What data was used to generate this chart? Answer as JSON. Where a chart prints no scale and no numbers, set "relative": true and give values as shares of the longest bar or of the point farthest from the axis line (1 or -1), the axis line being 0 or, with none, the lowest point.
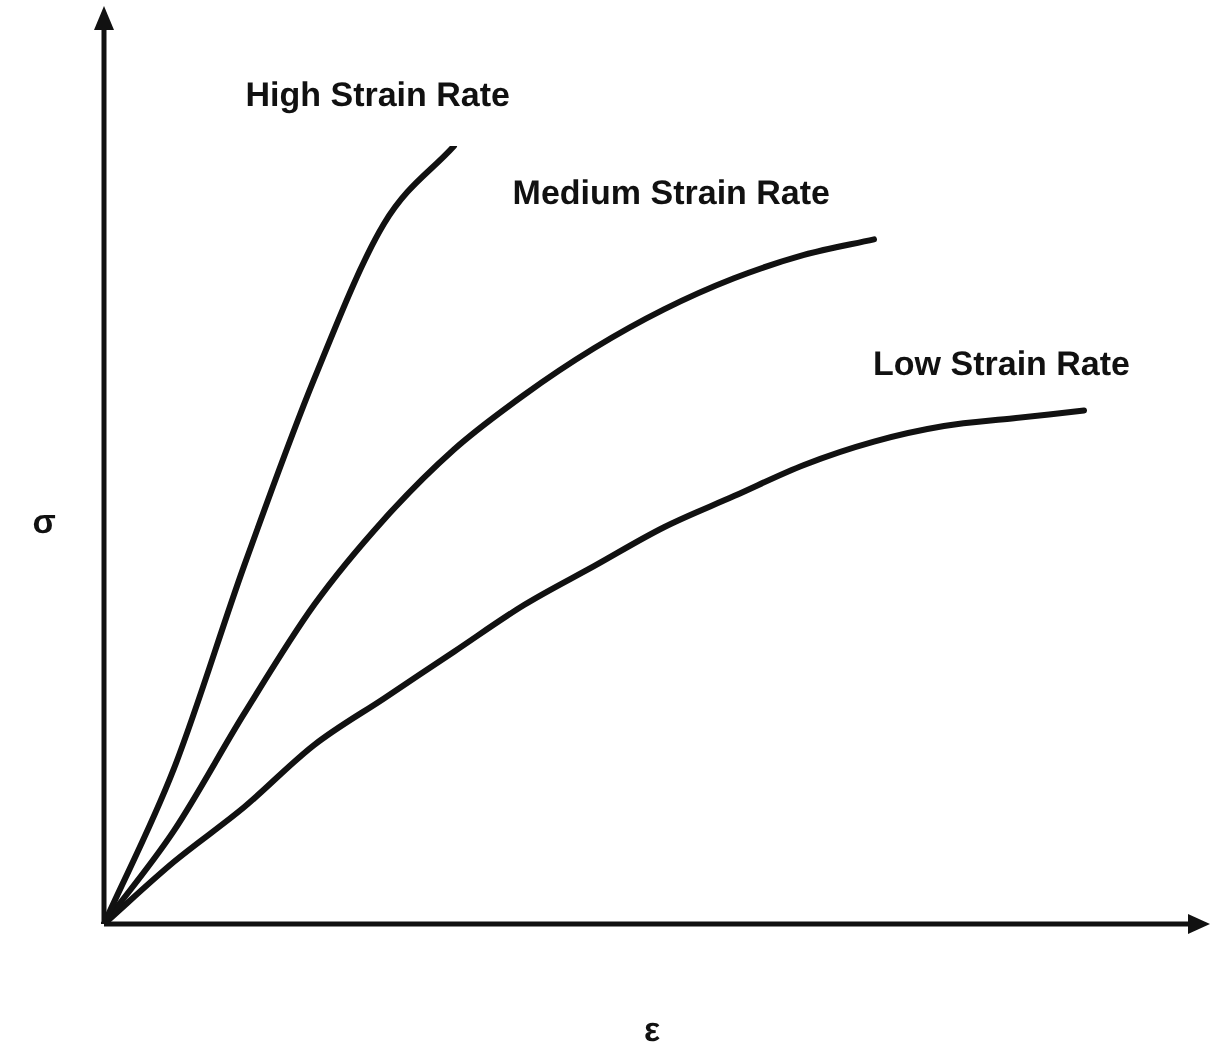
{
  "chart_data": {
    "type": "line",
    "relative": true,
    "xlabel": "ε",
    "ylabel": "σ",
    "legend": false,
    "marker": "none",
    "line_style": "solid",
    "categories": [
      null,
      null,
      null,
      null,
      null,
      null,
      null,
      null,
      null,
      null,
      null,
      null,
      null,
      null,
      null
    ],
    "series": [
      {
        "name": "High Strain Rate",
        "color": "#111111",
        "values": [
          0,
          0.2,
          0.46,
          0.7,
          0.9,
          1,
          null,
          null,
          null,
          null,
          null,
          null,
          null,
          null,
          null
        ]
      },
      {
        "name": "Medium Strain Rate",
        "color": "#111111",
        "values": [
          0,
          0.12,
          0.27,
          0.41,
          0.52,
          0.61,
          0.68,
          0.74,
          0.79,
          0.83,
          0.86,
          0.88,
          null,
          null,
          null
        ]
      },
      {
        "name": "Low Strain Rate",
        "color": "#111111",
        "values": [
          0,
          0.08,
          0.15,
          0.23,
          0.29,
          0.35,
          0.41,
          0.46,
          0.51,
          0.55,
          0.59,
          0.62,
          0.64,
          0.65,
          0.66
        ]
      }
    ]
  }
}
